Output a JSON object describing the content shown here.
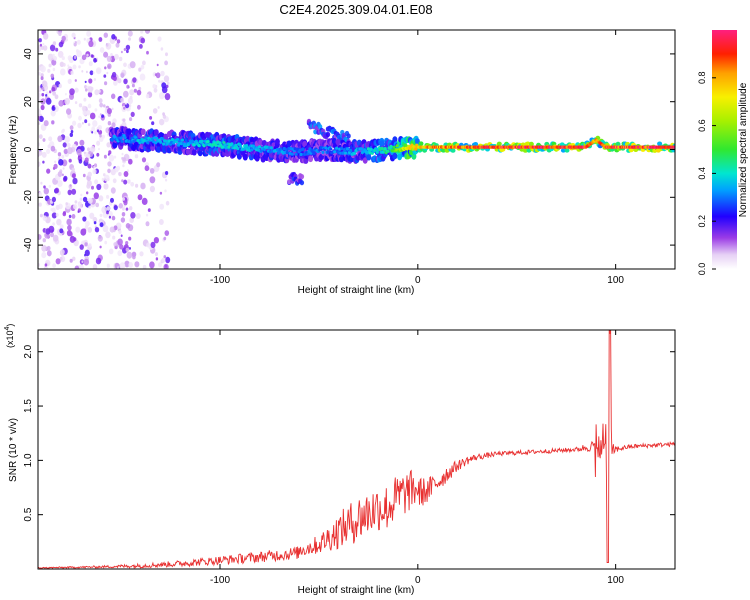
{
  "title": "C2E4.2025.309.04.01.E08",
  "chart_data": [
    {
      "type": "heatmap",
      "xlabel": "Height of straight line (km)",
      "ylabel": "Frequency (Hz)",
      "xlim": [
        -192,
        130
      ],
      "ylim": [
        -50,
        50
      ],
      "xticks": [
        -100,
        0,
        100
      ],
      "yticks": [
        -40,
        -20,
        0,
        20,
        40
      ],
      "colorbar": {
        "label": "Normalized spectral amplitude",
        "range": [
          0.0,
          1.0
        ],
        "ticks": [
          0.0,
          0.2,
          0.4,
          0.6,
          0.8
        ],
        "tick_labels": [
          "0.0",
          "0.2",
          "0.4",
          "0.6",
          "0.8"
        ]
      },
      "ridge": {
        "description": "main frequency track of spectrogram",
        "x": [
          -155,
          -140,
          -120,
          -100,
          -80,
          -60,
          -45,
          -30,
          -15,
          -5,
          5,
          15,
          30,
          60,
          85,
          90,
          95,
          130
        ],
        "y": [
          5,
          4,
          3,
          2,
          0,
          -1,
          0,
          -1,
          0,
          1,
          1,
          1,
          1,
          1,
          1,
          4,
          1,
          1
        ],
        "amplitude": [
          0.3,
          0.35,
          0.35,
          0.4,
          0.35,
          0.3,
          0.3,
          0.35,
          0.45,
          0.7,
          0.8,
          0.85,
          0.9,
          0.95,
          0.95,
          0.8,
          0.9,
          0.95
        ]
      },
      "secondary_features": [
        {
          "x": [
            -55,
            -45,
            -35
          ],
          "y": [
            10,
            7,
            5
          ],
          "amplitude": 0.3
        },
        {
          "x": [
            -65,
            -58
          ],
          "y": [
            -12,
            -13
          ],
          "amplitude": 0.25
        }
      ],
      "noise_region": {
        "x": [
          -192,
          -125
        ],
        "y": [
          -50,
          50
        ],
        "amplitude": 0.1
      }
    },
    {
      "type": "line",
      "xlabel": "Height of straight line (km)",
      "ylabel": "SNR (10 * v/v)",
      "y_multiplier": "(x10^4)",
      "xlim": [
        -192,
        130
      ],
      "ylim": [
        0,
        2.2
      ],
      "xticks": [
        -100,
        0,
        100
      ],
      "yticks": [
        0.5,
        1.0,
        1.5,
        2.0
      ],
      "ytick_labels": [
        "0.5",
        "1.0",
        "1.5",
        "2.0"
      ],
      "series": [
        {
          "name": "SNR",
          "color": "#e83030",
          "x": [
            -192,
            -160,
            -140,
            -120,
            -100,
            -80,
            -60,
            -50,
            -40,
            -30,
            -20,
            -15,
            -10,
            -5,
            0,
            5,
            10,
            15,
            20,
            25,
            30,
            40,
            50,
            60,
            70,
            80,
            88,
            92,
            95,
            96,
            97,
            98,
            100,
            105,
            110,
            120,
            130
          ],
          "y": [
            0.01,
            0.02,
            0.03,
            0.05,
            0.08,
            0.11,
            0.15,
            0.2,
            0.3,
            0.4,
            0.5,
            0.5,
            0.6,
            0.65,
            0.7,
            0.72,
            0.8,
            0.88,
            0.95,
            1.0,
            1.03,
            1.06,
            1.07,
            1.08,
            1.09,
            1.1,
            1.13,
            1.1,
            1.18,
            0.08,
            2.2,
            1.1,
            1.1,
            1.12,
            1.13,
            1.14,
            1.15
          ],
          "noise_amp": [
            0.005,
            0.01,
            0.02,
            0.03,
            0.04,
            0.05,
            0.06,
            0.08,
            0.15,
            0.2,
            0.2,
            0.2,
            0.2,
            0.18,
            0.15,
            0.12,
            0.1,
            0.08,
            0.05,
            0.04,
            0.03,
            0.02,
            0.02,
            0.02,
            0.02,
            0.02,
            0.05,
            0.15,
            0.0,
            0.0,
            0.0,
            0.1,
            0.03,
            0.02,
            0.02,
            0.02,
            0.02
          ]
        }
      ]
    }
  ]
}
